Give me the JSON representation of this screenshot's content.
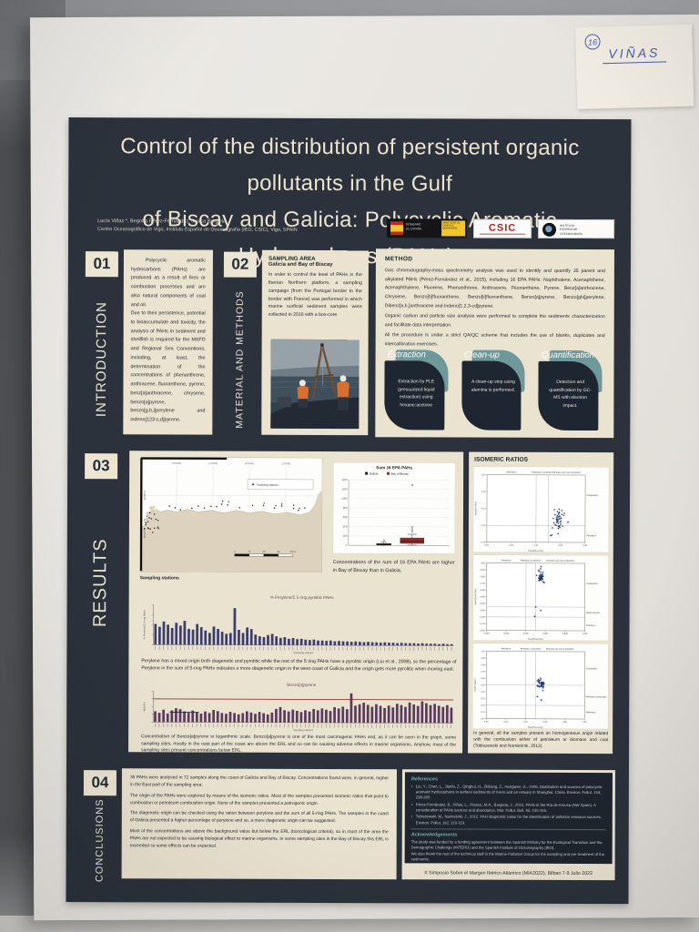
{
  "wall_note": {
    "number": "16",
    "name": "VIÑAS"
  },
  "poster": {
    "title_line1": "Control of the distribution of persistent organic pollutants in the Gulf",
    "title_line2": "of Biscay and Galicia: Polycyclic Aromatic Hydrocarbons (PAHs).",
    "authors": "Lucía Viñas *, Begoña Pérez-Fernández, Jesica Bargiela",
    "affiliation": "Centro Oceanográfico de Vigo, Instituto Español de Oceanografía (IEO, CSIC), Vigo, SPAIN",
    "logos": {
      "gobierno_line1": "GOBIERNO",
      "gobierno_line2": "DE ESPAÑA",
      "ministerio": "MINISTERIO DE CIENCIA E INNOVACIÓN",
      "csic": "CSIC",
      "ieo_line1": "INSTITUTO",
      "ieo_line2": "ESPAÑOL DE",
      "ieo_line3": "OCEANOGRAFÍA"
    },
    "footer": "X Simposio Sobre el Margen Ibérico Atlántico (MIA2022), Bilbao 7-9 Julio 2022"
  },
  "sections": {
    "intro": {
      "number": "01",
      "label": "INTRODUCTION",
      "p1": "Polycyclic aromatic hydrocarbons (PAHs) are produced as a result of fires or combustion processes and are also natural components of coal and oil.",
      "p2": "Due to their persistence, potential to bioaccumulate and toxicity, the analysis of PAHs in sediment and shellfish is required for the MSFD and Regional Sea Conventions, including, at least, the determination of the concentrations of phenanthrene, anthracene, fluoranthene, pyrene, benz[a]anthracene, chrysene, benzo[a]pyrene, benzo[g,h,i]perylene and indeno[123-c,d]pyrene."
    },
    "methods": {
      "number": "02",
      "label": "MATERIAL AND METHODS",
      "sampling_title": "SAMPLING AREA",
      "sampling_subtitle": "Galicia and Bay of Biscay",
      "text": "In order to control the level of PAHs in the Iberian Northern platform, a sampling campaign (from the Portugal border to the border with France) was performed in which marine surficial sediment samples were collected in 2016 with a box-core",
      "method_title": "METHOD",
      "p1": "Gas chromatography-mass spectrometry analysis was used to identify and quantify 35 parent and alkylated PAHs (Pérez-Fernández et al., 2015), including 16 EPA PAHs: Naphthalene, Acenaphthene, Acenaphthylene, Fluorene, Phenanthrene, Anthracene, Fluoranthene, Pyrene, Benz[a]anthracene, Chrysene, Benzo[b]fluoranthene, Benzo[k]fluoranthene, Benzo[a]pyrene, Benzo[ghi]perylene, Dibenz[a,h,]anthracene and Indeno[1,2,3-cd]pyrene.",
      "p2": "Organic carbon and particle size analysis were performed to complete the sediments characterization and facilitate data interpretation.",
      "p3": "All the procedure is under a strict QA/QC scheme that includes the use of blanks, duplicates and intercalibration exercises.",
      "steps": [
        {
          "title": "Extraction",
          "text": "Extraction by PLE (pressurized liquid extraction) using hexane:acetone"
        },
        {
          "title": "Clean-up",
          "text": "A clean-up step using alumina is performed."
        },
        {
          "title": "Quantification",
          "text": "Detection and quantification by GC-MS with electron impact."
        }
      ]
    },
    "results": {
      "number": "03",
      "label": "RESULTS",
      "map_caption": "Sampling stations",
      "boxplot_caption": "Concentrations of the sum of 16 EPA PAHs are higher in Bay of Biscay than in Galicia.",
      "perylene_text": "Perylene has a mixed origin both diagenetic and pyrolitic while the rest of the 5 ring PAHs have a pyrolitic origin (Liu et al., 2008), so the percentage of Perylene in the sum of 5-ring PAHs indicates a more diagenetic origin in the west coast of Galicia and the origin gets more pyrolitic when moving east.",
      "bap_caption": "Concentration of Benzo[a]pyrene in logarithmic scale. Benzo[a]pyrene is one of the most carcinogenic PAHs and, as it can be seen in the graph, some sampling sites, mostly in the east part of the coast are above the ERL and so can be causing adverse effects in marine organisms. Anyhow, most of the sampling sites present concentrations below ERL.",
      "iso_title": "ISOMERIC RATIOS",
      "iso_caption": "In general, all the samples present an homogeneous origin related with the combustion either of petroleum or biomass and coal (Tobiszewski and Namieśnik, 2012)."
    },
    "conclusions": {
      "number": "04",
      "label": "CONCLUSIONS",
      "p1": "35 PAHs were analysed in 72 samples along the coast of Galicia and Bay of Biscay. Concentrations found were, in general, higher in the East part of the sampling area.",
      "p2": "The origin of the PAHs were explored by means of the isomeric ratios. Most of the samples presented isomeric ratios that point to combustion or petroleum combustion origin. None of the samples presented a petrogenic origin.",
      "p3": "The diagenetic origin can be checked using the ration between perylene and the sum of all 5-ring PAHs. The samples in the coast of Galicia presented a higher percentage of perylene and so, a more diagenetic origin can be suggested.",
      "p4": "Most of the concentrations are above the background value but below the ERL (toxicological criteria), so in most of the area the PAHs are not expected to be causing biological effect to marine organisms. In some sampling sites in the Bay of Biscay this ERL is exceeded so some effects can be expected."
    }
  },
  "references": {
    "title": "References",
    "items": [
      "Liu, Y., Chen, L., Jianfu, Z., Qinghui, H., Zhiliang, Z., Hongwen, G., 2008. Distribution and sources of polycyclic aromatic hydrocarbons in surface sediments of rivers and an estuary in Shanghai, China. Environ. Pollut. 154, 298-305.",
      "Pérez-Fernández, B., Viñas, L., Franco, M.Á., Bargiela, J., 2015. PAHs in the Ría de Arousa (NW Spain). A consideration of PAHs sources and abundance. Mar. Pollut. Bull. 95, 155-165.",
      "Tobiszewski, M., Namieśnik, J., 2012. PAH diagnostic ratios for the identification of pollution emission sources. Environ. Pollut. 162, 110-119."
    ],
    "ack_title": "Acknowledgements",
    "ack1": "The study was funded by a funding agreement between the Spanish Ministry for the Ecological Transition and the Demographic Challenge (MITERD) and the Spanish Institute of Oceanography (IEO).",
    "ack2": "We also thank the rest of the technical staff in the Marine Pollution Group for the sampling and pre-treatment of the sediments."
  },
  "colors": {
    "poster_bg": "#2b323b",
    "panel_cream": "#eae3d0",
    "teal": "#6f989a",
    "csic_red": "#b01f24",
    "bar_navy": "#3d3d70",
    "bar_purple": "#5d3b5e",
    "erl_red": "#8b1a1a",
    "scatter_blue": "#1f3b73"
  },
  "chart_data": [
    {
      "id": "boxplot",
      "type": "boxplot",
      "title": "Sum 16 EPA PAHs",
      "ylabel": "Concentration ng/g d.w.",
      "ylim": [
        0,
        1400
      ],
      "yticks": [
        0,
        200,
        400,
        600,
        800,
        1000,
        1200,
        1400
      ],
      "legend": [
        {
          "label": "Galicia",
          "color": "#22252a"
        },
        {
          "label": "Bay of Biscay",
          "color": "#9e2428"
        }
      ],
      "series": [
        {
          "name": "Galicia",
          "color": "#22252a",
          "q1": 8,
          "median": 18,
          "q3": 38,
          "lo": 2,
          "hi": 70,
          "outliers": [
            110
          ]
        },
        {
          "name": "Bay of Biscay",
          "color": "#9e2428",
          "q1": 45,
          "median": 95,
          "q3": 160,
          "lo": 8,
          "hi": 240,
          "outliers": [
            300,
            345,
            390,
            1290
          ]
        }
      ]
    },
    {
      "id": "perylene",
      "type": "bar",
      "title": "% Perylene/Σ 5 ring pyrolitic PAHs",
      "ylabel": "% Perylene/Σ 5 ring PAHs",
      "xlabel": "Sampling stations",
      "color": "#3d3d70",
      "ymax": 100,
      "values": [
        52,
        45,
        58,
        50,
        42,
        55,
        48,
        60,
        40,
        38,
        52,
        44,
        36,
        30,
        46,
        40,
        33,
        28,
        30,
        92,
        38,
        30,
        44,
        40,
        26,
        22,
        20,
        25,
        28,
        22,
        18,
        20,
        16,
        18,
        15,
        16,
        14,
        13,
        14,
        12,
        12,
        11,
        12,
        10,
        11,
        10,
        10,
        9,
        10,
        9,
        8,
        9,
        8,
        8,
        7,
        8,
        7,
        7,
        6,
        7,
        6,
        6,
        6,
        5,
        6,
        5,
        5,
        5,
        4,
        5,
        4,
        4
      ]
    },
    {
      "id": "bap",
      "type": "bar",
      "title": "Benzo[a]pyrene",
      "ylabel": "ng/g d.w.",
      "xlabel": "Sampling stations",
      "color": "#5d3b5e",
      "ymax": 100,
      "erl": 75,
      "erl_color": "#8b1a1a",
      "bg": 32,
      "bg_color": "#24262b",
      "values": [
        35,
        30,
        40,
        28,
        38,
        45,
        42,
        35,
        30,
        38,
        32,
        28,
        35,
        30,
        40,
        36,
        30,
        28,
        34,
        30,
        26,
        30,
        36,
        32,
        28,
        34,
        30,
        26,
        32,
        44,
        50,
        40,
        36,
        42,
        38,
        34,
        40,
        36,
        44,
        40,
        46,
        42,
        38,
        50,
        46,
        52,
        44,
        95,
        55,
        60,
        65,
        58,
        52,
        60,
        55,
        48,
        56,
        50,
        62,
        58,
        52,
        66,
        60,
        55,
        70,
        64,
        58,
        62,
        56,
        52,
        58,
        50
      ]
    },
    {
      "id": "iso1",
      "type": "scatter",
      "ylabel": "Ant/(Ant+Phe)",
      "xlabel": "Flua/(Flua+Pyr)",
      "xlim": [
        0,
        0.8
      ],
      "ylim": [
        0,
        0.4
      ],
      "xticks": [
        "0.00",
        "0.20",
        "0.40",
        "0.60",
        "0.80"
      ],
      "yticks": [
        "0.00",
        "0.10",
        "0.20",
        "0.30",
        "0.40"
      ],
      "vlines": [
        0.4,
        0.5
      ],
      "hlines": [
        0.1
      ],
      "top_labels": [
        "Petroleum",
        "Petroleum combustion",
        "Biomass and coal combustion"
      ],
      "right_labels": [
        {
          "label": "Combustion",
          "y": 0.28
        },
        {
          "label": "Petroleum",
          "y": 0.04
        }
      ],
      "cluster": {
        "cx": 0.58,
        "cy": 0.13,
        "sx": 0.03,
        "sy": 0.05,
        "n": 45
      },
      "extra": [
        [
          0.52,
          0.04
        ],
        [
          0.66,
          0.12
        ]
      ],
      "seed": 7,
      "color": "#1f3b73"
    },
    {
      "id": "iso2",
      "type": "scatter",
      "ylabel": "BaA/(BaA+Chry)",
      "xlabel": "Flua/(Flua+Pyr)",
      "xlim": [
        0,
        1
      ],
      "ylim": [
        0,
        1
      ],
      "xticks": [
        "0.000",
        "0.200",
        "0.400",
        "0.600",
        "0.800",
        "1.000"
      ],
      "yticks": [
        "0.000",
        "0.100",
        "0.200",
        "0.300",
        "0.400",
        "0.500",
        "0.600",
        "0.700",
        "0.800",
        "0.900",
        "1.000"
      ],
      "vlines": [
        0.4,
        0.5
      ],
      "hlines": [
        0.2,
        0.35
      ],
      "top_labels": [
        "Petroleum",
        "Petroleum combustion",
        "Biomass and coal combustion"
      ],
      "right_labels": [
        {
          "label": "Combustion",
          "y": 0.7
        },
        {
          "label": "Mixed sources",
          "y": 0.27
        },
        {
          "label": "Petroleum",
          "y": 0.08
        }
      ],
      "cluster": {
        "cx": 0.55,
        "cy": 0.8,
        "sx": 0.022,
        "sy": 0.09,
        "n": 45
      },
      "extra": [
        [
          0.5,
          0.35
        ],
        [
          0.55,
          0.3
        ],
        [
          0.49,
          0.21
        ]
      ],
      "seed": 11,
      "color": "#1f3b73"
    },
    {
      "id": "iso3",
      "type": "scatter",
      "ylabel": "IP/(IP+BghiP)",
      "xlabel": "Flua/(Flua+Pyr)",
      "xlim": [
        0,
        1
      ],
      "ylim": [
        0,
        1
      ],
      "xticks": [
        "0.00",
        "0.20",
        "0.40",
        "0.60",
        "0.80",
        "1.00"
      ],
      "yticks": [
        "0.00",
        "0.10",
        "0.20",
        "0.30",
        "0.40",
        "0.50",
        "0.60",
        "0.70",
        "0.80",
        "0.90",
        "1.00"
      ],
      "vlines": [
        0.4,
        0.5
      ],
      "hlines": [
        0.2,
        0.5
      ],
      "top_labels": [
        "Petroleum",
        "Petroleum combustion",
        "Biomass and coal combustion"
      ],
      "right_labels": [
        {
          "label": "Combustion",
          "y": 0.75
        },
        {
          "label": "Petroleum combustion",
          "y": 0.33
        },
        {
          "label": "Petroleum",
          "y": 0.1
        }
      ],
      "cluster": {
        "cx": 0.55,
        "cy": 0.52,
        "sx": 0.028,
        "sy": 0.05,
        "n": 45
      },
      "extra": [
        [
          0.52,
          0.33
        ],
        [
          0.56,
          0.28
        ]
      ],
      "seed": 13,
      "color": "#1f3b73"
    },
    {
      "id": "map",
      "type": "map",
      "legend": "Sampling stations",
      "lon_labels": [
        "8°0'0\"W",
        "6°0'0\"W",
        "4°0'0\"W",
        "2°0'0\"W"
      ],
      "lat_labels": [
        "44°0'0\"N",
        "43°0'0\"N"
      ],
      "scale_labels": [
        "0",
        "50",
        "100",
        "150",
        "200 km"
      ]
    }
  ]
}
